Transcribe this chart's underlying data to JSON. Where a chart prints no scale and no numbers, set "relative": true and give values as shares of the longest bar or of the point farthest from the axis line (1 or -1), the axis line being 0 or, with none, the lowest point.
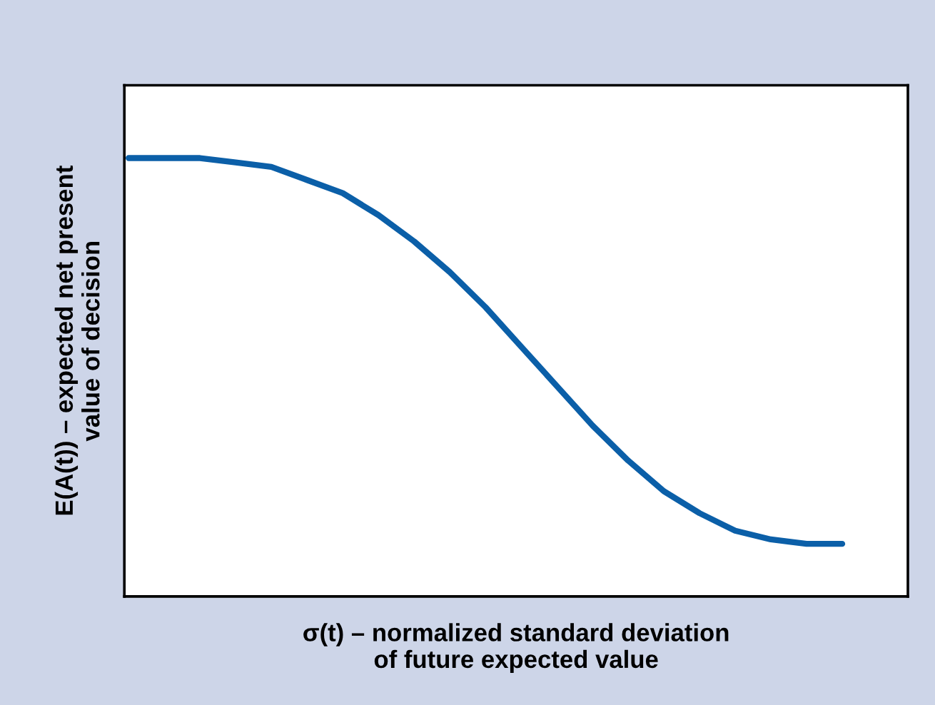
{
  "chart_data": {
    "type": "line",
    "relative": true,
    "xlabel": "σ(t) – normalized standard deviation\nof future expected value",
    "ylabel": "E(A(t)) – expected net present\nvalue of decision",
    "categories": [
      null,
      null,
      null,
      null,
      null,
      null,
      null,
      null,
      null,
      null,
      null,
      null,
      null,
      null,
      null,
      null,
      null,
      null,
      null,
      null,
      null
    ],
    "series": [
      {
        "color": "#0b5fa8",
        "values": [
          1.0,
          1.0,
          1.0,
          0.99,
          0.98,
          0.95,
          0.92,
          0.87,
          0.81,
          0.74,
          0.66,
          0.57,
          0.48,
          0.39,
          0.31,
          0.24,
          0.19,
          0.15,
          0.13,
          0.12,
          0.12
        ]
      }
    ],
    "grid": false,
    "legend": false,
    "marker": "none",
    "line_style": "solid"
  }
}
